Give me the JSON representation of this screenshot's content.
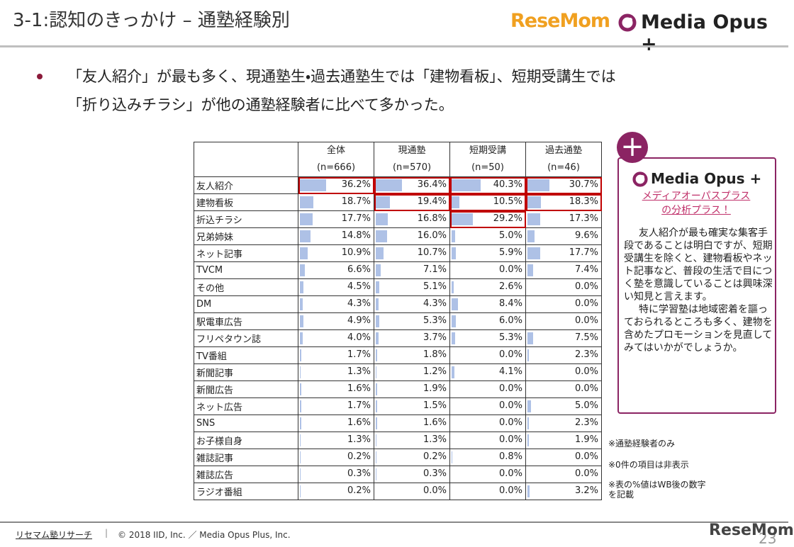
{
  "header": {
    "title": "3-1:認知のきっかけ – 通塾経験別",
    "logos": [
      "ReseMom",
      "Media Opus +"
    ]
  },
  "bullet": [
    "「友人紹介」が最も多く、現通塾生・過去通塾生では「建物看板」、短期受講生では",
    "「折り込みチラシ」が他の通塾経験者に比べて多かった。"
  ],
  "table": {
    "columns": [
      {
        "name": "全体",
        "n": "(n=666)"
      },
      {
        "name": "現通塾",
        "n": "(n=570)"
      },
      {
        "name": "短期受講",
        "n": "(n=50)"
      },
      {
        "name": "過去通塾",
        "n": "(n=46)"
      }
    ],
    "rows": [
      {
        "label": "友人紹介",
        "values": [
          36.2,
          36.4,
          40.3,
          30.7
        ],
        "labels": [
          "36.2%",
          "36.4%",
          "40.3%",
          "30.7%"
        ]
      },
      {
        "label": "建物看板",
        "values": [
          18.7,
          19.4,
          10.5,
          18.3
        ],
        "labels": [
          "18.7%",
          "19.4%",
          "10.5%",
          "18.3%"
        ]
      },
      {
        "label": "折込チラシ",
        "values": [
          17.7,
          16.8,
          29.2,
          17.3
        ],
        "labels": [
          "17.7%",
          "16.8%",
          "29.2%",
          "17.3%"
        ]
      },
      {
        "label": "兄弟姉妹",
        "values": [
          14.8,
          16.0,
          5.0,
          9.6
        ],
        "labels": [
          "14.8%",
          "16.0%",
          "5.0%",
          "9.6%"
        ]
      },
      {
        "label": "ネット記事",
        "values": [
          10.9,
          10.7,
          5.9,
          17.7
        ],
        "labels": [
          "10.9%",
          "10.7%",
          "5.9%",
          "17.7%"
        ]
      },
      {
        "label": "TVCM",
        "values": [
          6.6,
          7.1,
          0.0,
          7.4
        ],
        "labels": [
          "6.6%",
          "7.1%",
          "0.0%",
          "7.4%"
        ]
      },
      {
        "label": "その他",
        "values": [
          4.5,
          5.1,
          2.6,
          0.0
        ],
        "labels": [
          "4.5%",
          "5.1%",
          "2.6%",
          "0.0%"
        ]
      },
      {
        "label": "DM",
        "values": [
          4.3,
          4.3,
          8.4,
          0.0
        ],
        "labels": [
          "4.3%",
          "4.3%",
          "8.4%",
          "0.0%"
        ]
      },
      {
        "label": "駅電車広告",
        "values": [
          4.9,
          5.3,
          6.0,
          0.0
        ],
        "labels": [
          "4.9%",
          "5.3%",
          "6.0%",
          "0.0%"
        ]
      },
      {
        "label": "フリペタウン誌",
        "values": [
          4.0,
          3.7,
          5.3,
          7.5
        ],
        "labels": [
          "4.0%",
          "3.7%",
          "5.3%",
          "7.5%"
        ]
      },
      {
        "label": "TV番組",
        "values": [
          1.7,
          1.8,
          0.0,
          2.3
        ],
        "labels": [
          "1.7%",
          "1.8%",
          "0.0%",
          "2.3%"
        ]
      },
      {
        "label": "新聞記事",
        "values": [
          1.3,
          1.2,
          4.1,
          0.0
        ],
        "labels": [
          "1.3%",
          "1.2%",
          "4.1%",
          "0.0%"
        ]
      },
      {
        "label": "新聞広告",
        "values": [
          1.6,
          1.9,
          0.0,
          0.0
        ],
        "labels": [
          "1.6%",
          "1.9%",
          "0.0%",
          "0.0%"
        ]
      },
      {
        "label": "ネット広告",
        "values": [
          1.7,
          1.5,
          0.0,
          5.0
        ],
        "labels": [
          "1.7%",
          "1.5%",
          "0.0%",
          "5.0%"
        ]
      },
      {
        "label": "SNS",
        "values": [
          1.6,
          1.6,
          0.0,
          2.3
        ],
        "labels": [
          "1.6%",
          "1.6%",
          "0.0%",
          "2.3%"
        ]
      },
      {
        "label": "お子様自身",
        "values": [
          1.3,
          1.3,
          0.0,
          1.9
        ],
        "labels": [
          "1.3%",
          "1.3%",
          "0.0%",
          "1.9%"
        ]
      },
      {
        "label": "雑誌記事",
        "values": [
          0.2,
          0.2,
          0.8,
          0.0
        ],
        "labels": [
          "0.2%",
          "0.2%",
          "0.8%",
          "0.0%"
        ]
      },
      {
        "label": "雑誌広告",
        "values": [
          0.3,
          0.3,
          0.0,
          0.0
        ],
        "labels": [
          "0.3%",
          "0.3%",
          "0.0%",
          "0.0%"
        ]
      },
      {
        "label": "ラジオ番組",
        "values": [
          0.2,
          0.0,
          0.0,
          3.2
        ],
        "labels": [
          "0.2%",
          "0.0%",
          "0.0%",
          "3.2%"
        ]
      }
    ]
  },
  "panel": {
    "logo": "Media Opus +",
    "link": [
      "メディアオーパスプラス",
      "の分析プラス！"
    ],
    "paragraphs": [
      "友人紹介が最も確実な集客手段であることは明白ですが、短期受講生を除くと、建物看板やネット記事など、普段の生活で目につく塾を意識していることは興味深い知見と言えます。",
      "特に学習塾は地域密着を謳っておられるところも多く、建物を含めたプロモーションを見直してみてはいかがでしょうか。"
    ]
  },
  "notes": [
    "※通塾経験者のみ",
    "※0件の項目は非表示",
    "※表の%値はWB後の数字を記載"
  ],
  "footer": {
    "brand": "リセマム塾リサーチ",
    "copyright": "© 2018 IID, Inc. ／ Media Opus Plus, Inc.",
    "logo": "ReseMom",
    "page": "23"
  }
}
